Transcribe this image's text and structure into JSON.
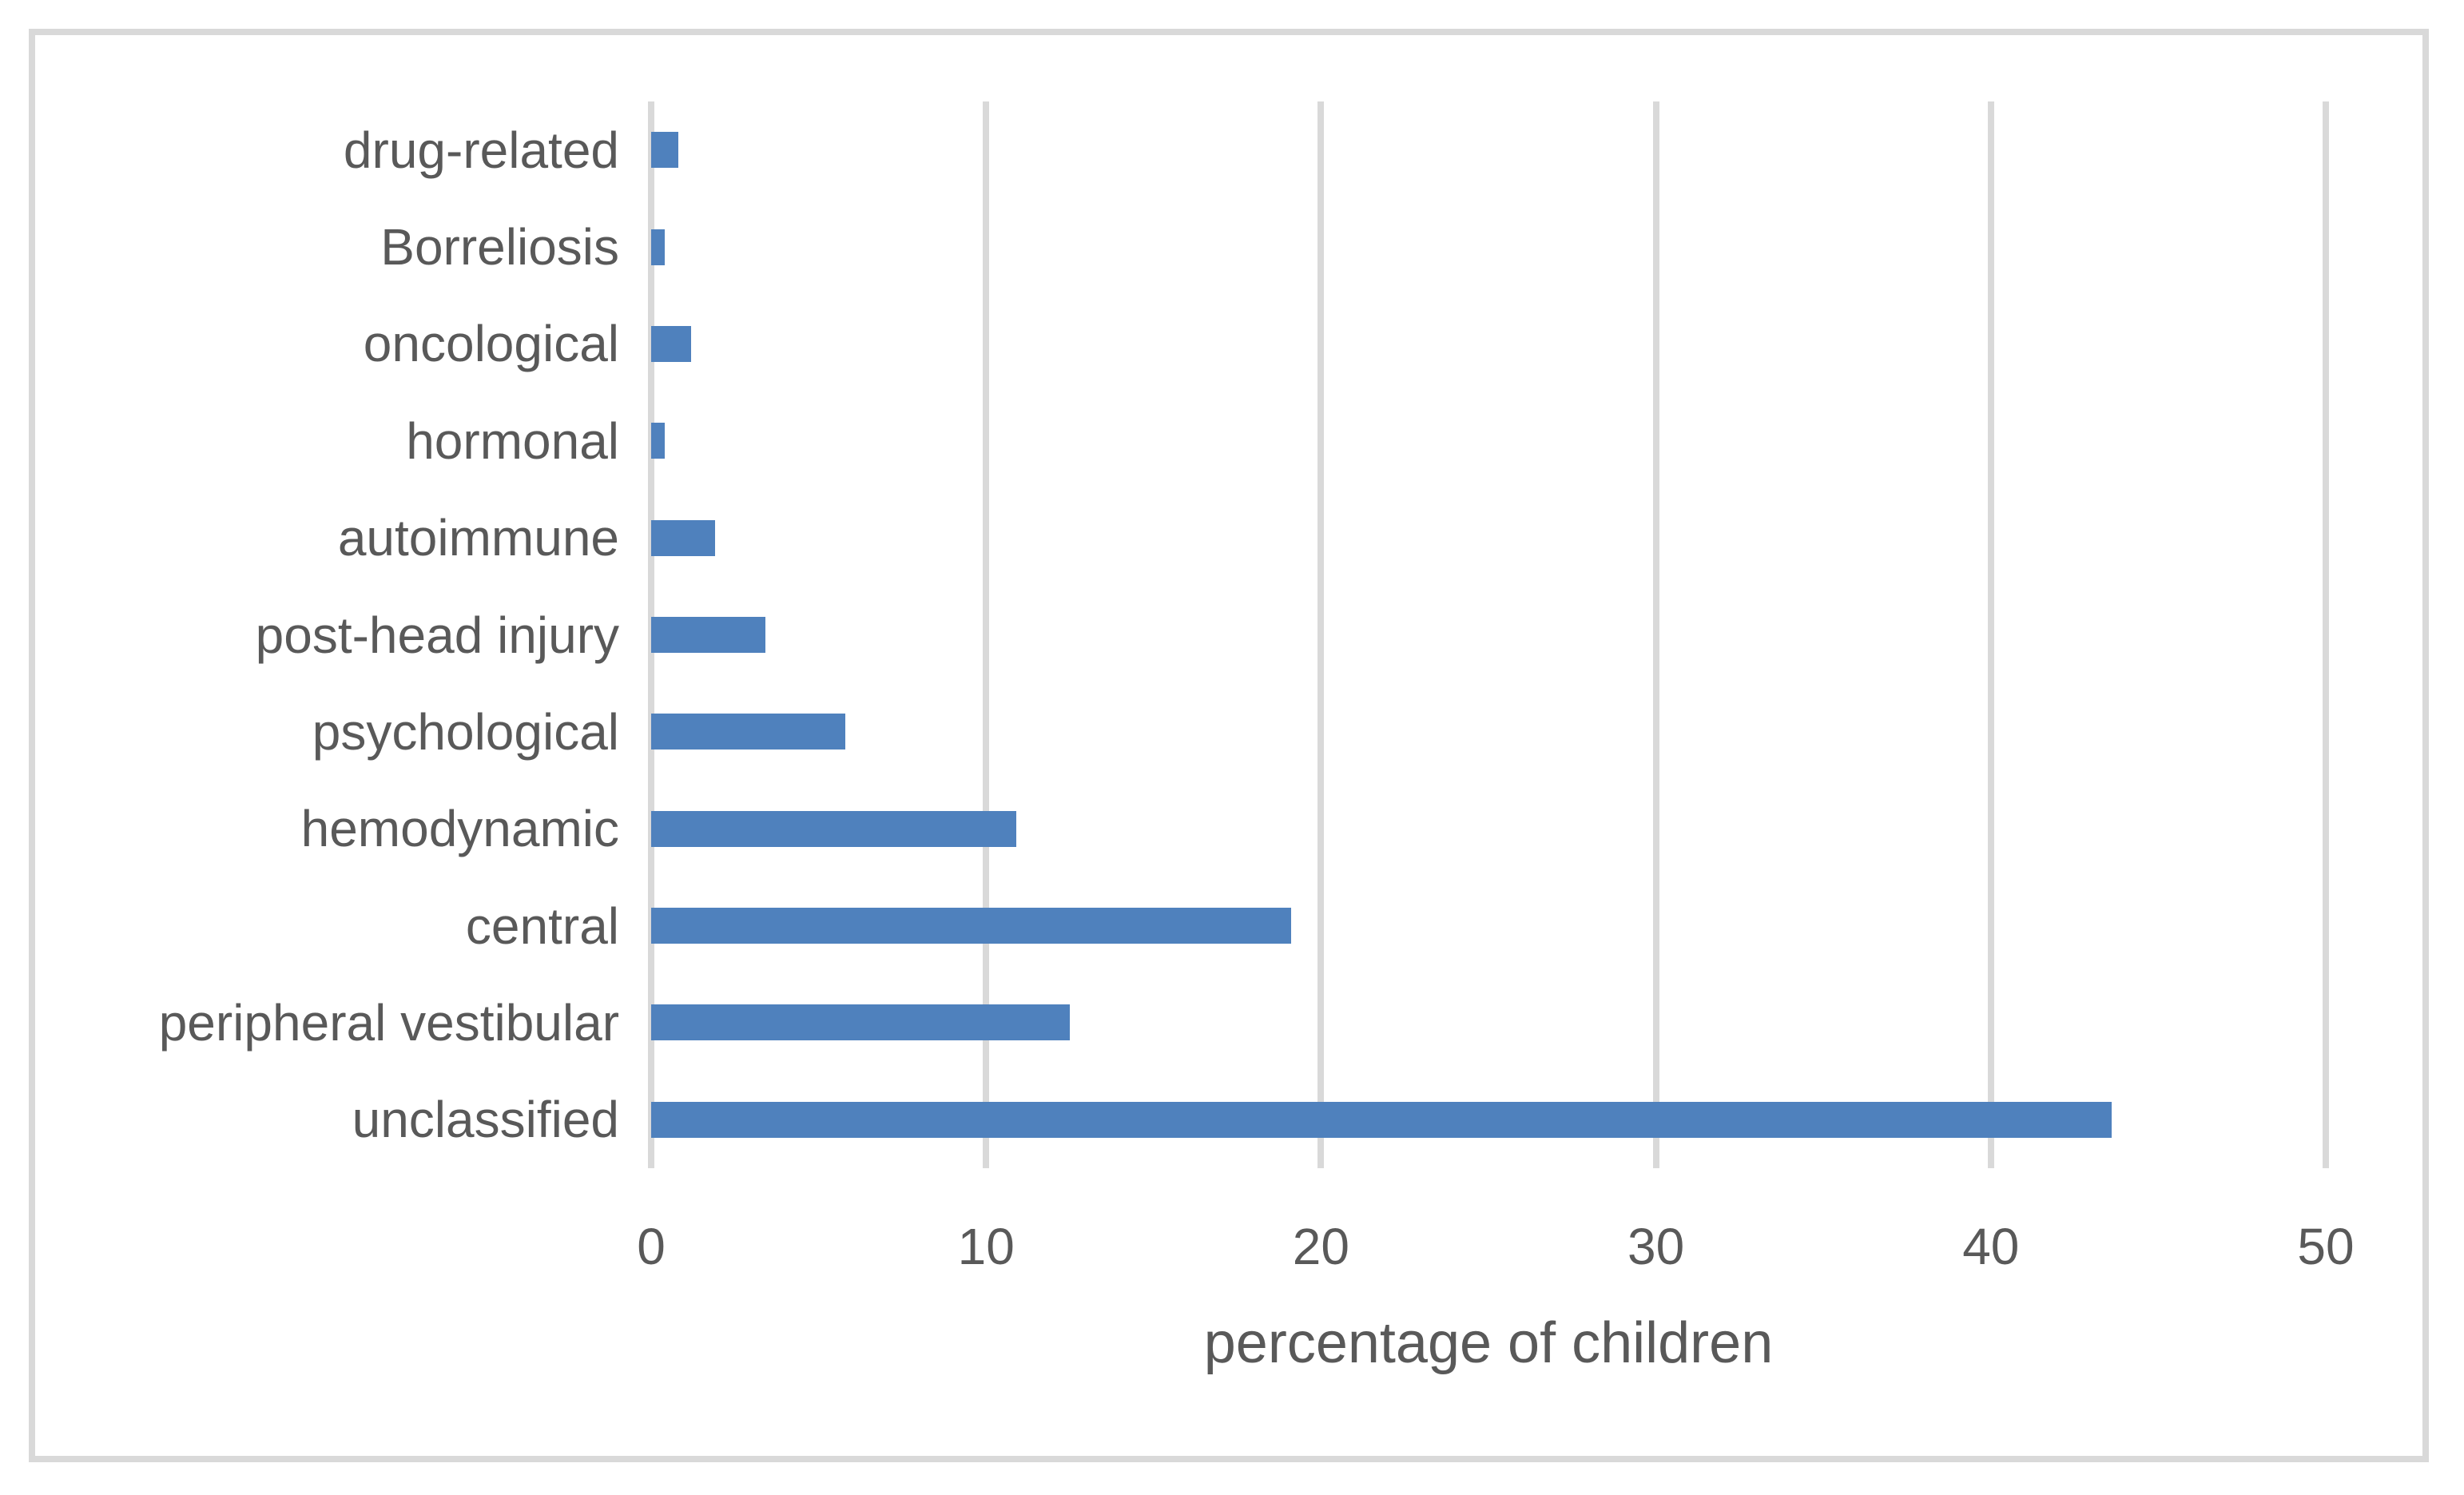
{
  "chart_data": {
    "type": "bar",
    "orientation": "horizontal",
    "title": "",
    "xlabel": "percentage of children",
    "ylabel": "",
    "categories": [
      "drug-related",
      "Borreliosis",
      "oncological",
      "hormonal",
      "autoimmune",
      "post-head injury",
      "psychological",
      "hemodynamic",
      "central",
      "peripheral vestibular",
      "unclassified"
    ],
    "values": [
      0.8,
      0.4,
      1.2,
      0.4,
      1.9,
      3.4,
      5.8,
      10.9,
      19.1,
      12.5,
      43.6
    ],
    "xlim": [
      0,
      50
    ],
    "xticks": [
      0,
      10,
      20,
      30,
      40,
      50
    ],
    "grid": true,
    "legend": "none",
    "colors": {
      "bar": "#4f81bd",
      "gridline": "#d9d9d9",
      "frame": "#d9d9d9",
      "text": "#595959",
      "background": "#ffffff"
    }
  }
}
